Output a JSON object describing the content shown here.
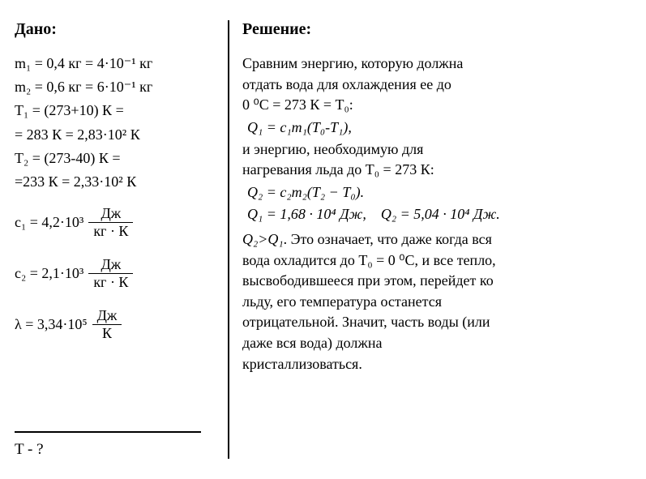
{
  "given": {
    "heading": "Дано:",
    "lines": [
      "m₁ = 0,4 кг = 4·10⁻¹ кг",
      "m₂ = 0,6 кг = 6·10⁻¹ кг",
      "T₁ = (273+10) К =",
      "= 283 К = 2,83·10² К",
      "T₂ = (273-40) К =",
      "=233 К = 2,33·10² К"
    ],
    "c1": {
      "prefix": "c₁ = 4,2·10³",
      "num": "Дж",
      "den": "кг · К"
    },
    "c2": {
      "prefix": "c₂ = 2,1·10³",
      "num": "Дж",
      "den": "кг · К"
    },
    "lambda": {
      "prefix": "λ = 3,34·10⁵",
      "num": "Дж",
      "den": "К"
    },
    "question": "T - ?"
  },
  "solution": {
    "heading": "Решение:",
    "p1a": "Сравним энергию, которую должна",
    "p1b": "отдать вода для охлаждения ее до",
    "p1c": "0 ⁰С = 273 К = T₀:",
    "eq1": "Q₁ = c₁m₁(T₀-T₁),",
    "p2a": "и энергию, необходимую для",
    "p2b": "нагревания льда до T₀ = 273 К:",
    "eq2": "Q₂ = c₂m₂(T₂ − T₀).",
    "eq3a": "Q₁ = 1,68 · 10⁴ Дж,",
    "eq3b": "Q₂ = 5,04 · 10⁴ Дж.",
    "p3a": "Q₂>Q₁. Это означает, что даже когда вся",
    "p3b": "вода охладится до T₀ = 0 ⁰С, и все тепло,",
    "p3c": "высвободившееся при этом, перейдет ко",
    "p3d": "льду, его температура останется",
    "p3e": "отрицательной. Значит, часть воды (или",
    "p3f": "даже вся вода) должна",
    "p3g": "кристаллизоваться."
  }
}
